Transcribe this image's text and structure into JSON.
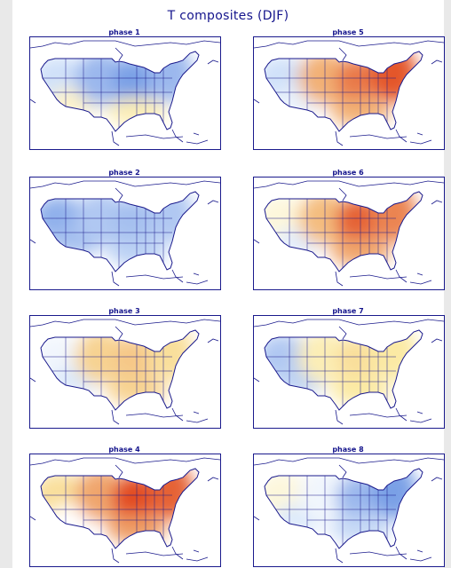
{
  "title": "T composites (DJF)",
  "panels": [
    {
      "label": "phase 1",
      "anomaly": {
        "west": -0.3,
        "plains": -0.55,
        "midwest": -0.7,
        "east": -0.55,
        "southwest": 0.15,
        "gulf": 0.2
      }
    },
    {
      "label": "phase 5",
      "anomaly": {
        "west": -0.3,
        "plains": 0.5,
        "midwest": 0.75,
        "east": 0.9,
        "southwest": -0.15,
        "gulf": 0.5
      }
    },
    {
      "label": "phase 2",
      "anomaly": {
        "west": -0.6,
        "plains": -0.45,
        "midwest": -0.5,
        "east": -0.45,
        "southwest": -0.5,
        "gulf": -0.4
      }
    },
    {
      "label": "phase 6",
      "anomaly": {
        "west": 0.1,
        "plains": 0.45,
        "midwest": 0.85,
        "east": 0.7,
        "southwest": -0.2,
        "gulf": 0.55
      }
    },
    {
      "label": "phase 3",
      "anomaly": {
        "west": -0.1,
        "plains": 0.35,
        "midwest": 0.4,
        "east": 0.3,
        "southwest": -0.25,
        "gulf": 0.35
      }
    },
    {
      "label": "phase 7",
      "anomaly": {
        "west": -0.45,
        "plains": 0.2,
        "midwest": 0.3,
        "east": 0.25,
        "southwest": -0.4,
        "gulf": 0.25
      }
    },
    {
      "label": "phase 4",
      "anomaly": {
        "west": 0.3,
        "plains": 0.55,
        "midwest": 0.95,
        "east": 0.85,
        "southwest": 0.0,
        "gulf": 0.6
      }
    },
    {
      "label": "phase 8",
      "anomaly": {
        "west": 0.1,
        "plains": -0.1,
        "midwest": -0.55,
        "east": -0.7,
        "southwest": -0.25,
        "gulf": -0.35
      }
    }
  ],
  "colors": {
    "frame": "#1a1a8c",
    "outline": "#1a1a8c",
    "label_text": "#14148c",
    "cold_strong": "#3a6fd8",
    "cold_weak": "#dbe9fb",
    "neutral": "#ffffff",
    "warm_weak": "#fbeaa4",
    "warm_strong": "#e0401a"
  }
}
